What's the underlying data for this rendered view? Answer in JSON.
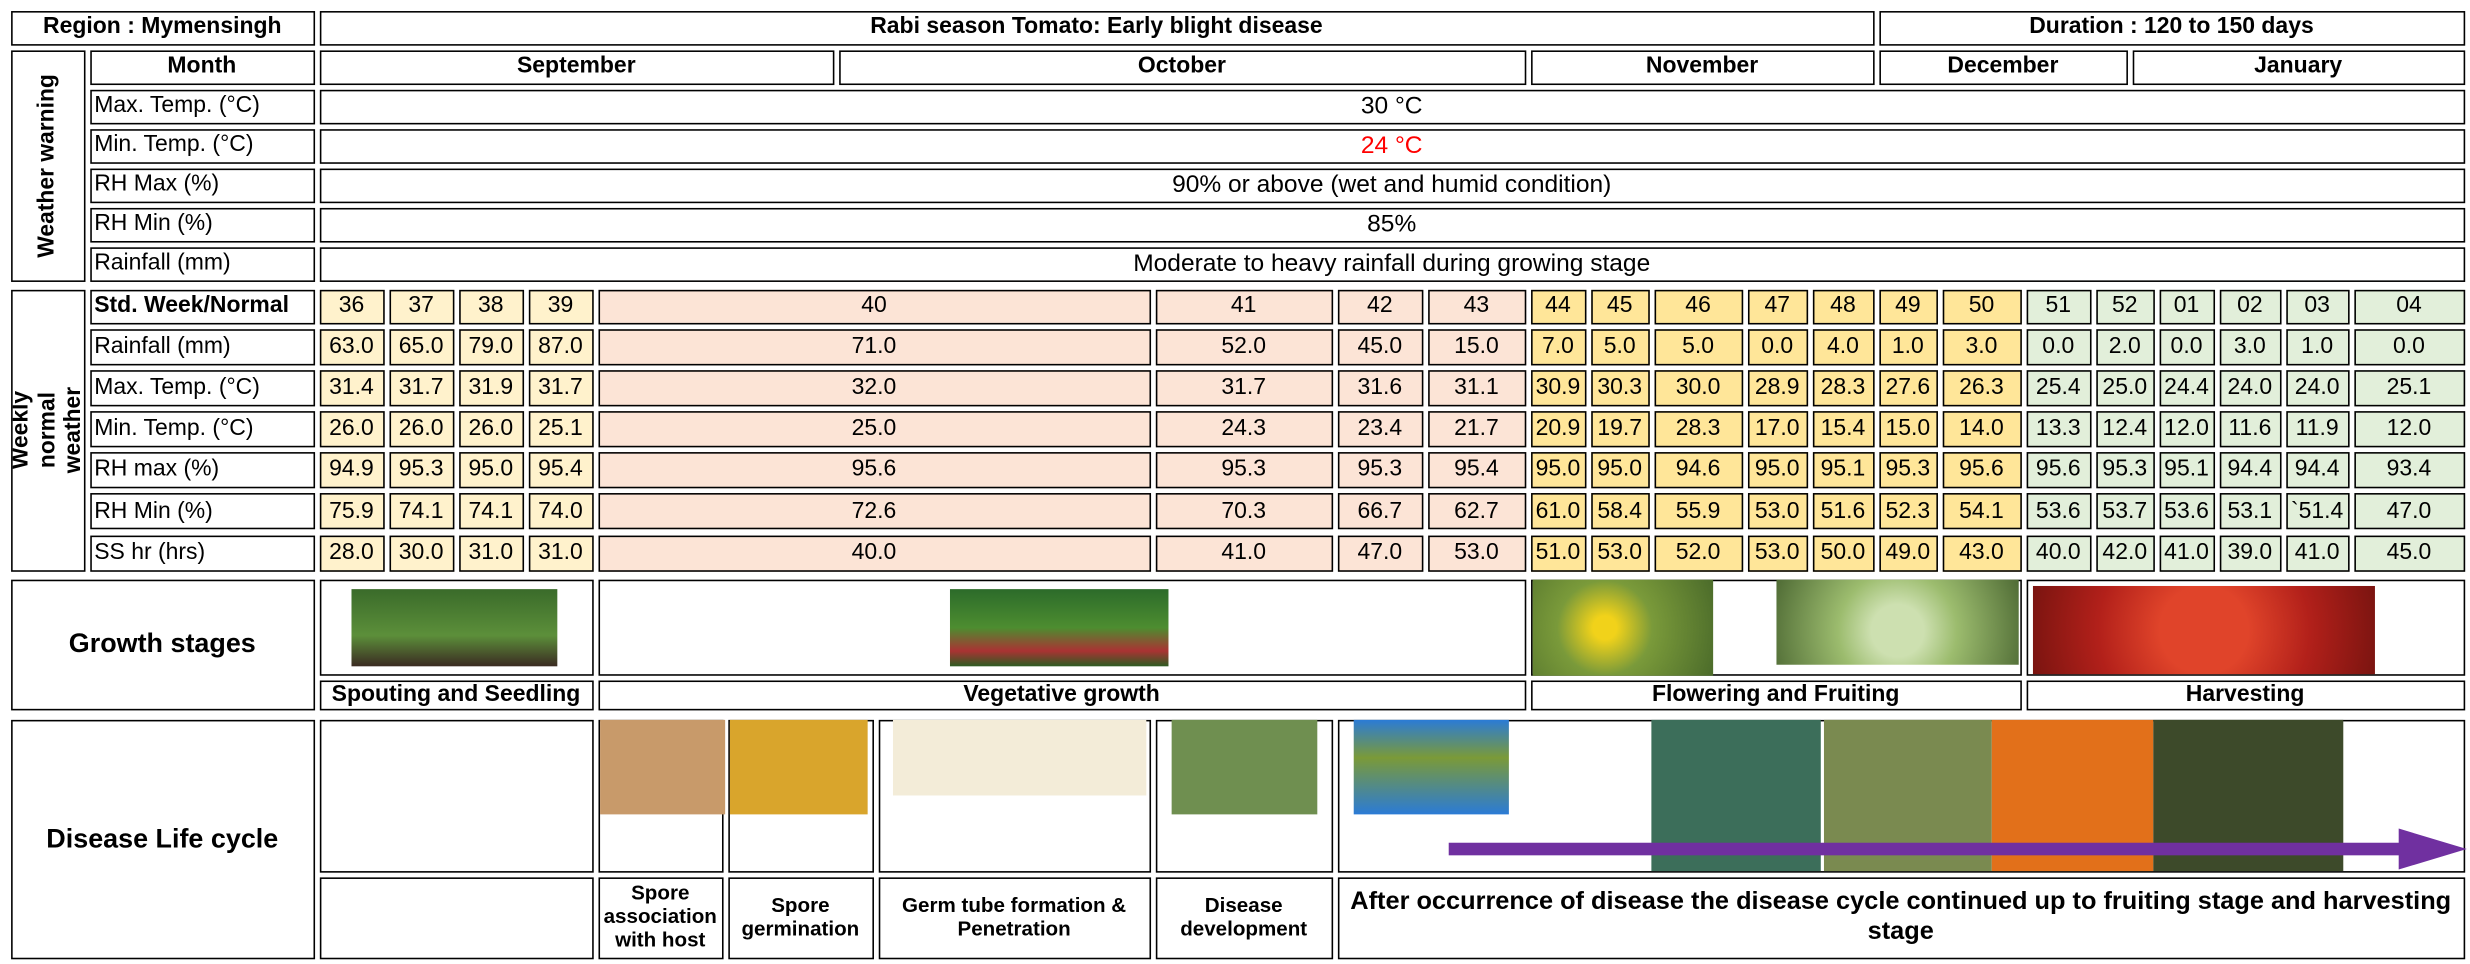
{
  "header": {
    "region": "Region : Mymensingh",
    "title": "Rabi season Tomato: Early blight disease",
    "duration": "Duration : 120 to 150 days"
  },
  "month_label": "Month",
  "months": [
    "September",
    "October",
    "November",
    "December",
    "January"
  ],
  "weather_warning": {
    "label": "Weather warning",
    "rows": [
      {
        "name": "Max. Temp. (°C)",
        "value": "30 °C"
      },
      {
        "name": "Min. Temp. (°C)",
        "value": "24 °C"
      },
      {
        "name": "RH Max (%)",
        "value": "90% or above (wet and humid condition)"
      },
      {
        "name": "RH Min (%)",
        "value": "85%"
      },
      {
        "name": "Rainfall (mm)",
        "value": "Moderate to heavy rainfall during growing stage"
      }
    ]
  },
  "weekly_normal": {
    "label": "Weekly normal weather",
    "header": "Std. Week/Normal",
    "weeks": [
      "36",
      "37",
      "38",
      "39",
      "40",
      "41",
      "42",
      "43",
      "44",
      "45",
      "46",
      "47",
      "48",
      "49",
      "50",
      "51",
      "52",
      "01",
      "02",
      "03",
      "04"
    ],
    "rows": [
      {
        "name": "Rainfall (mm)",
        "values": [
          "63.0",
          "65.0",
          "79.0",
          "87.0",
          "71.0",
          "52.0",
          "45.0",
          "15.0",
          "7.0",
          "5.0",
          "5.0",
          "0.0",
          "4.0",
          "1.0",
          "3.0",
          "0.0",
          "2.0",
          "0.0",
          "3.0",
          "1.0",
          "0.0"
        ]
      },
      {
        "name": "Max. Temp. (°C)",
        "values": [
          "31.4",
          "31.7",
          "31.9",
          "31.7",
          "32.0",
          "31.7",
          "31.6",
          "31.1",
          "30.9",
          "30.3",
          "30.0",
          "28.9",
          "28.3",
          "27.6",
          "26.3",
          "25.4",
          "25.0",
          "24.4",
          "24.0",
          "24.0",
          "25.1"
        ]
      },
      {
        "name": "Min. Temp. (°C)",
        "values": [
          "26.0",
          "26.0",
          "26.0",
          "25.1",
          "25.0",
          "24.3",
          "23.4",
          "21.7",
          "20.9",
          "19.7",
          "28.3",
          "17.0",
          "15.4",
          "15.0",
          "14.0",
          "13.3",
          "12.4",
          "12.0",
          "11.6",
          "11.9",
          "12.0"
        ]
      },
      {
        "name": "RH max (%)",
        "values": [
          "94.9",
          "95.3",
          "95.0",
          "95.4",
          "95.6",
          "95.3",
          "95.3",
          "95.4",
          "95.0",
          "95.0",
          "94.6",
          "95.0",
          "95.1",
          "95.3",
          "95.6",
          "95.6",
          "95.3",
          "95.1",
          "94.4",
          "94.4",
          "93.4"
        ]
      },
      {
        "name": "RH Min (%)",
        "values": [
          "75.9",
          "74.1",
          "74.1",
          "74.0",
          "72.6",
          "70.3",
          "66.7",
          "62.7",
          "61.0",
          "58.4",
          "55.9",
          "53.0",
          "51.6",
          "52.3",
          "54.1",
          "53.6",
          "53.7",
          "53.6",
          "53.1",
          "`51.4",
          "47.0"
        ]
      },
      {
        "name": "SS hr (hrs)",
        "values": [
          "28.0",
          "30.0",
          "31.0",
          "31.0",
          "40.0",
          "41.0",
          "47.0",
          "53.0",
          "51.0",
          "53.0",
          "52.0",
          "53.0",
          "50.0",
          "49.0",
          "43.0",
          "40.0",
          "42.0",
          "41.0",
          "39.0",
          "41.0",
          "45.0"
        ]
      }
    ]
  },
  "growth_stages": {
    "label": "Growth stages",
    "stages": [
      "Spouting and Seedling",
      "Vegetative growth",
      "Flowering and Fruiting",
      "Harvesting"
    ]
  },
  "disease_cycle": {
    "label": "Disease Life cycle",
    "steps": [
      "Spore association with host",
      "Spore germination",
      "Germ tube formation & Penetration",
      "Disease development",
      "After occurrence of disease the disease cycle continued up to fruiting stage and harvesting stage"
    ]
  }
}
